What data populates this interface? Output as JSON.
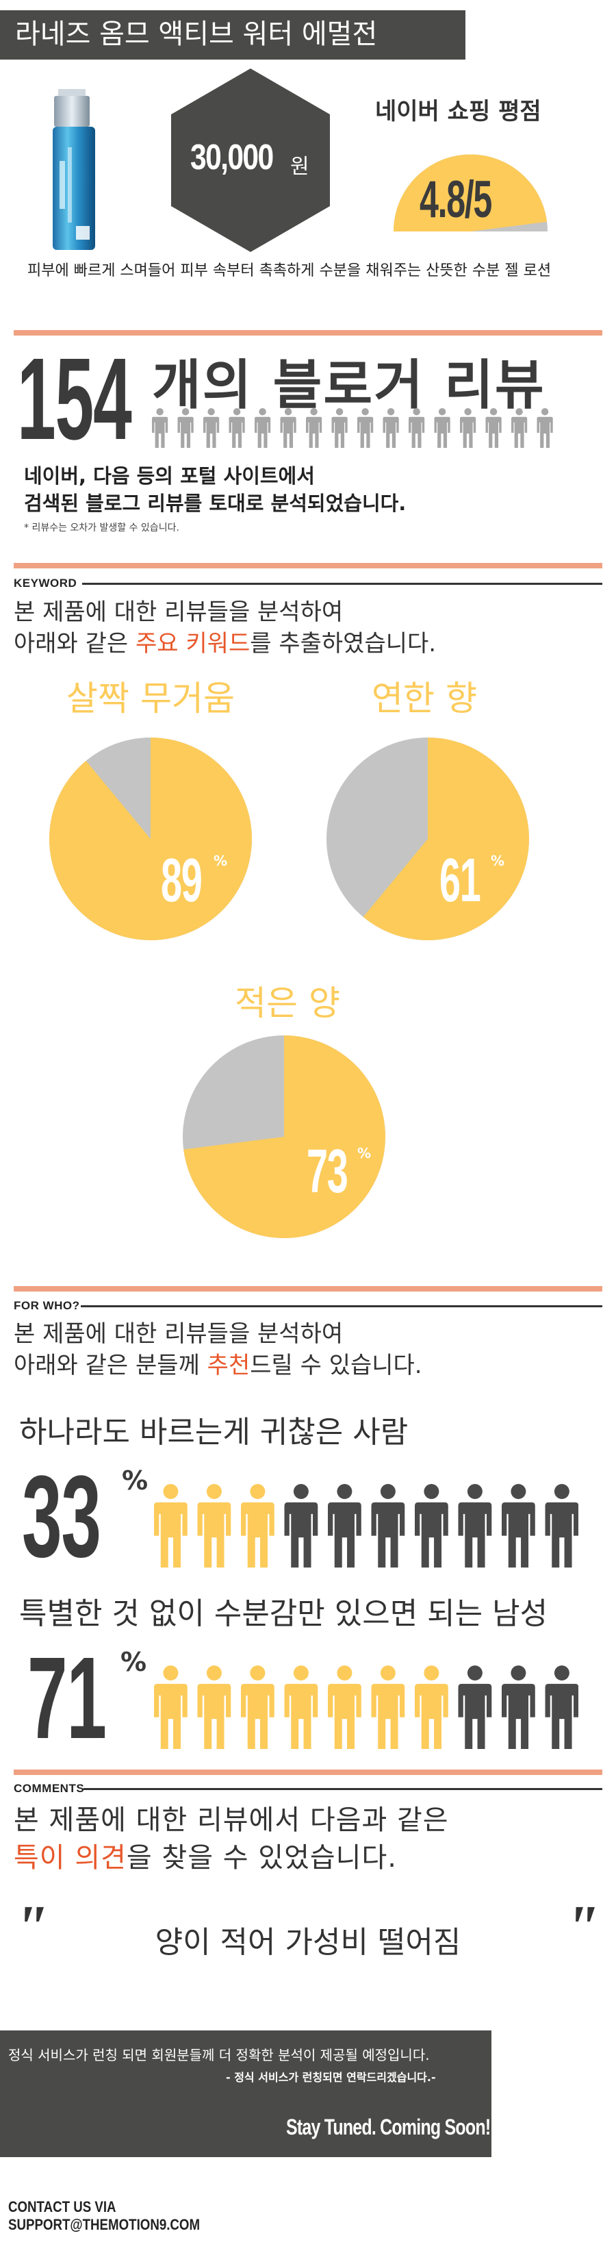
{
  "header": {
    "title": "라네즈 옴므 액티브 워터 에멀전"
  },
  "product": {
    "price_value": "30,000",
    "price_unit": "원",
    "rating_title": "네이버 쇼핑 평점",
    "rating_text": "4.8/5",
    "rating_value": 4.8,
    "rating_max": 5,
    "description": "피부에 빠르게 스며들어 피부 속부터 촉촉하게 수분을 채워주는 산뜻한 수분 젤 로션"
  },
  "reviews": {
    "count": "154",
    "count_label": "개의 블로거 리뷰",
    "desc_line1": "네이버, 다음 등의 포털 사이트에서",
    "desc_line2": "검색된 블로그 리뷰를 토대로 분석되었습니다.",
    "note": "* 리뷰수는 오차가 발생할 수 있습니다."
  },
  "keyword": {
    "label": "KEYWORD",
    "intro_line1": "본 제품에 대한 리뷰들을 분석하여",
    "intro_line2_a": "아래와 같은 ",
    "intro_line2_hl": "주요 키워드",
    "intro_line2_b": "를 추출하였습니다."
  },
  "chart_data": [
    {
      "type": "pie",
      "title": "살짝 무거움",
      "value": 89,
      "label": "89",
      "unit": "%"
    },
    {
      "type": "pie",
      "title": "연한 향",
      "value": 61,
      "label": "61",
      "unit": "%"
    },
    {
      "type": "pie",
      "title": "적은 양",
      "value": 73,
      "label": "73",
      "unit": "%"
    }
  ],
  "forwho": {
    "label": "FOR WHO?",
    "intro_line1": "본 제품에 대한 리뷰들을 분석하여",
    "intro_line2_a": "아래와 같은 분들께 ",
    "intro_line2_hl": "추천",
    "intro_line2_b": "드릴 수 있습니다.",
    "groups": [
      {
        "title": "하나라도 바르는게 귀찮은 사람",
        "percent": "33",
        "unit": "%",
        "highlighted_people": 3,
        "total_people": 10
      },
      {
        "title": "특별한 것 없이 수분감만 있으면 되는 남성",
        "percent": "71",
        "unit": "%",
        "highlighted_people": 7,
        "total_people": 10
      }
    ]
  },
  "comments": {
    "label": "COMMENTS",
    "intro_line1": "본 제품에 대한 리뷰에서 다음과 같은",
    "intro_line2_hl": "특이 의견",
    "intro_line2_b": "을 찾을 수 있었습니다.",
    "quote": "양이 적어 가성비 떨어짐"
  },
  "footer": {
    "line1": "정식 서비스가 런칭 되면 회원분들께 더 정확한 분석이 제공될 예정입니다.",
    "line2": "- 정식 서비스가 런칭되면 연락드리겠습니다.-",
    "tagline": "Stay Tuned. Coming Soon!",
    "contact_label": "CONTACT US VIA",
    "contact_email": "SUPPORT@THEMOTION9.COM"
  },
  "colors": {
    "yellow": "#fccb5a",
    "gray": "#c4c4c4",
    "dark": "#4a4a4a",
    "orange": "#f0a182",
    "accent": "#e8572a"
  }
}
